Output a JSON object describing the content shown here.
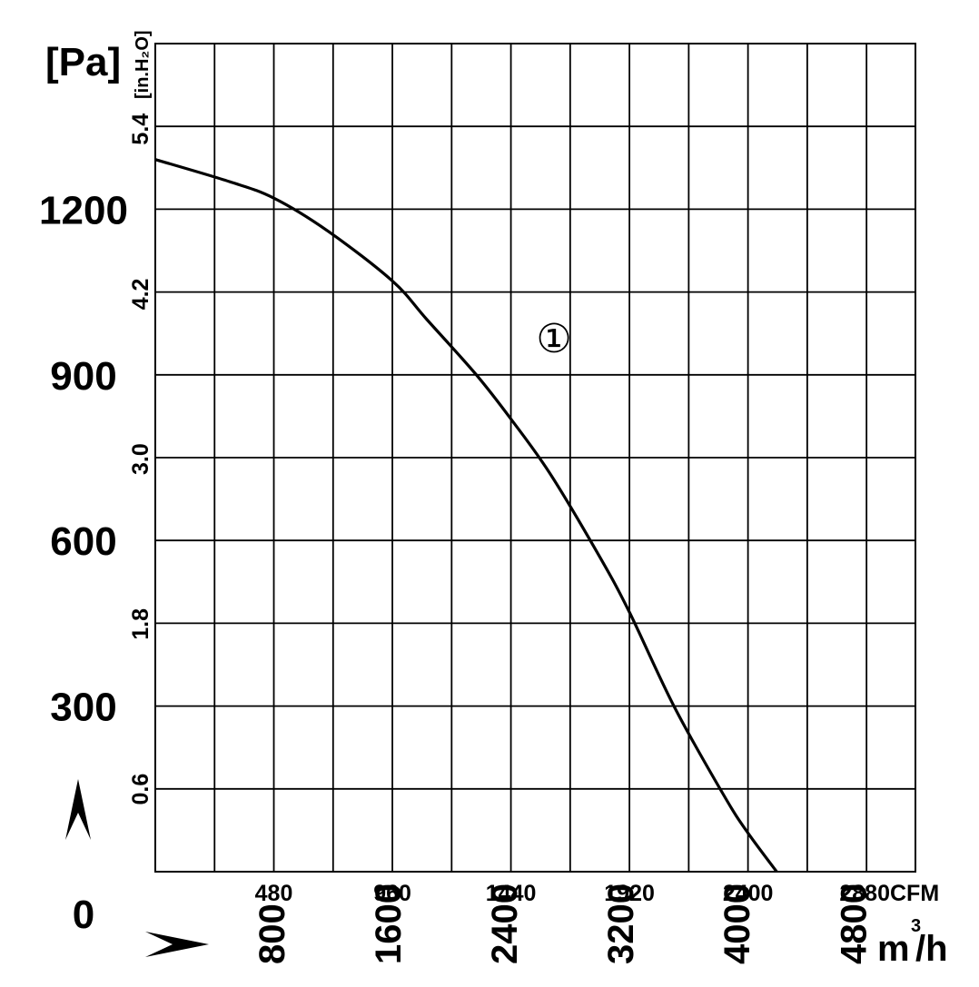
{
  "chart_data": {
    "type": "line",
    "title": "",
    "axes": {
      "y_primary": {
        "unit": "[Pa]",
        "ticks": [
          "1200",
          "900",
          "600",
          "300",
          "0"
        ],
        "tick_values": [
          1200,
          900,
          600,
          300,
          0
        ],
        "ylim": [
          0,
          1500
        ]
      },
      "y_secondary": {
        "unit": "[in.H₂O]",
        "ticks": [
          "5.4",
          "4.2",
          "3.0",
          "1.8",
          "0.6"
        ],
        "tick_values": [
          5.4,
          4.2,
          3.0,
          1.8,
          0.6
        ]
      },
      "x_primary": {
        "unit": "CFM",
        "ticks": [
          "480",
          "960",
          "1440",
          "1920",
          "2400",
          "2880"
        ],
        "tick_values": [
          480,
          960,
          1440,
          1920,
          2400,
          2880
        ],
        "xlim": [
          0,
          3078
        ]
      },
      "x_secondary": {
        "unit": "m³/h",
        "unit_text": "m",
        "unit_sup": "3",
        "unit_tail": "/h",
        "ticks": [
          "800",
          "1600",
          "2400",
          "3200",
          "4000",
          "4800"
        ],
        "tick_values": [
          800,
          1600,
          2400,
          3200,
          4000,
          4800
        ]
      }
    },
    "grid": true,
    "series": [
      {
        "label": "①",
        "x_unit": "CFM",
        "y_unit": "Pa",
        "x": [
          0,
          300,
          480,
          700,
          960,
          1100,
          1300,
          1440,
          1600,
          1800,
          1920,
          2100,
          2300,
          2400,
          2550,
          2650
        ],
        "y": [
          1290,
          1250,
          1220,
          1160,
          1070,
          1000,
          900,
          820,
          720,
          570,
          470,
          300,
          140,
          70,
          -20,
          -80
        ]
      }
    ],
    "annotations": [
      {
        "text": "①",
        "x": 1600,
        "y": 970
      }
    ]
  }
}
